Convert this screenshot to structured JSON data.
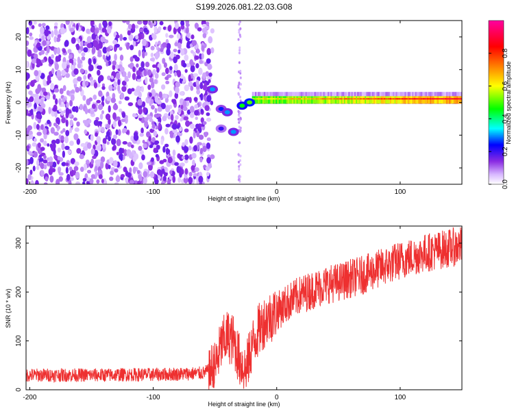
{
  "figure": {
    "title": "S199.2026.081.22.03.G08"
  },
  "chart_data": [
    {
      "type": "heatmap",
      "xlabel": "Height of straight line (km)",
      "ylabel": "Frequency (Hz)",
      "xlim": [
        -203,
        150
      ],
      "ylim": [
        -25,
        25
      ],
      "xticks": [
        -200,
        -100,
        0,
        100
      ],
      "yticks": [
        -20,
        -10,
        0,
        10,
        20
      ],
      "colorbar": {
        "label": "Normalized spectral amplitude",
        "range": [
          0.0,
          1.0
        ],
        "ticks": [
          0.0,
          0.2,
          0.4,
          0.6,
          0.8
        ],
        "tick_labels": [
          "0.0",
          "0.2",
          "0.4",
          "0.6",
          "0.8"
        ],
        "colors": [
          "#ffffff",
          "#d8b8ff",
          "#8a2be2",
          "#0000ff",
          "#00ffff",
          "#00ff00",
          "#ffff00",
          "#ff8000",
          "#ff0000",
          "#ff00a0"
        ]
      },
      "features": {
        "noise_region_x": [
          -203,
          -60
        ],
        "noise_amplitude": 0.15,
        "signal_line_frequency_hz": 1,
        "signal_x_start": -20,
        "signal_peak_amplitude": 0.9,
        "transition_blobs": [
          {
            "x": -52,
            "y": 4,
            "amplitude": 0.3
          },
          {
            "x": -45,
            "y": -2,
            "amplitude": 0.25
          },
          {
            "x": -40,
            "y": -3,
            "amplitude": 0.3
          },
          {
            "x": -45,
            "y": -8,
            "amplitude": 0.2
          },
          {
            "x": -35,
            "y": -9,
            "amplitude": 0.3
          },
          {
            "x": -28,
            "y": -1,
            "amplitude": 0.45
          },
          {
            "x": -22,
            "y": 0,
            "amplitude": 0.5
          }
        ]
      }
    },
    {
      "type": "line",
      "xlabel": "Height of straight line (km)",
      "ylabel": "SNR (10 * v/v)",
      "xlim": [
        -203,
        150
      ],
      "ylim": [
        0,
        335
      ],
      "xticks": [
        -200,
        -100,
        0,
        100
      ],
      "yticks": [
        0,
        100,
        200,
        300
      ],
      "color": "#ee3030",
      "x": [
        -203,
        -180,
        -160,
        -140,
        -120,
        -100,
        -80,
        -60,
        -50,
        -45,
        -40,
        -35,
        -30,
        -25,
        -20,
        -15,
        -10,
        -5,
        0,
        10,
        20,
        30,
        40,
        50,
        60,
        70,
        80,
        90,
        100,
        110,
        120,
        130,
        140,
        150
      ],
      "y": [
        30,
        30,
        30,
        30,
        31,
        31,
        32,
        34,
        45,
        90,
        110,
        100,
        60,
        40,
        90,
        120,
        140,
        150,
        160,
        180,
        195,
        205,
        215,
        220,
        228,
        235,
        245,
        255,
        265,
        272,
        280,
        285,
        290,
        295
      ]
    }
  ]
}
